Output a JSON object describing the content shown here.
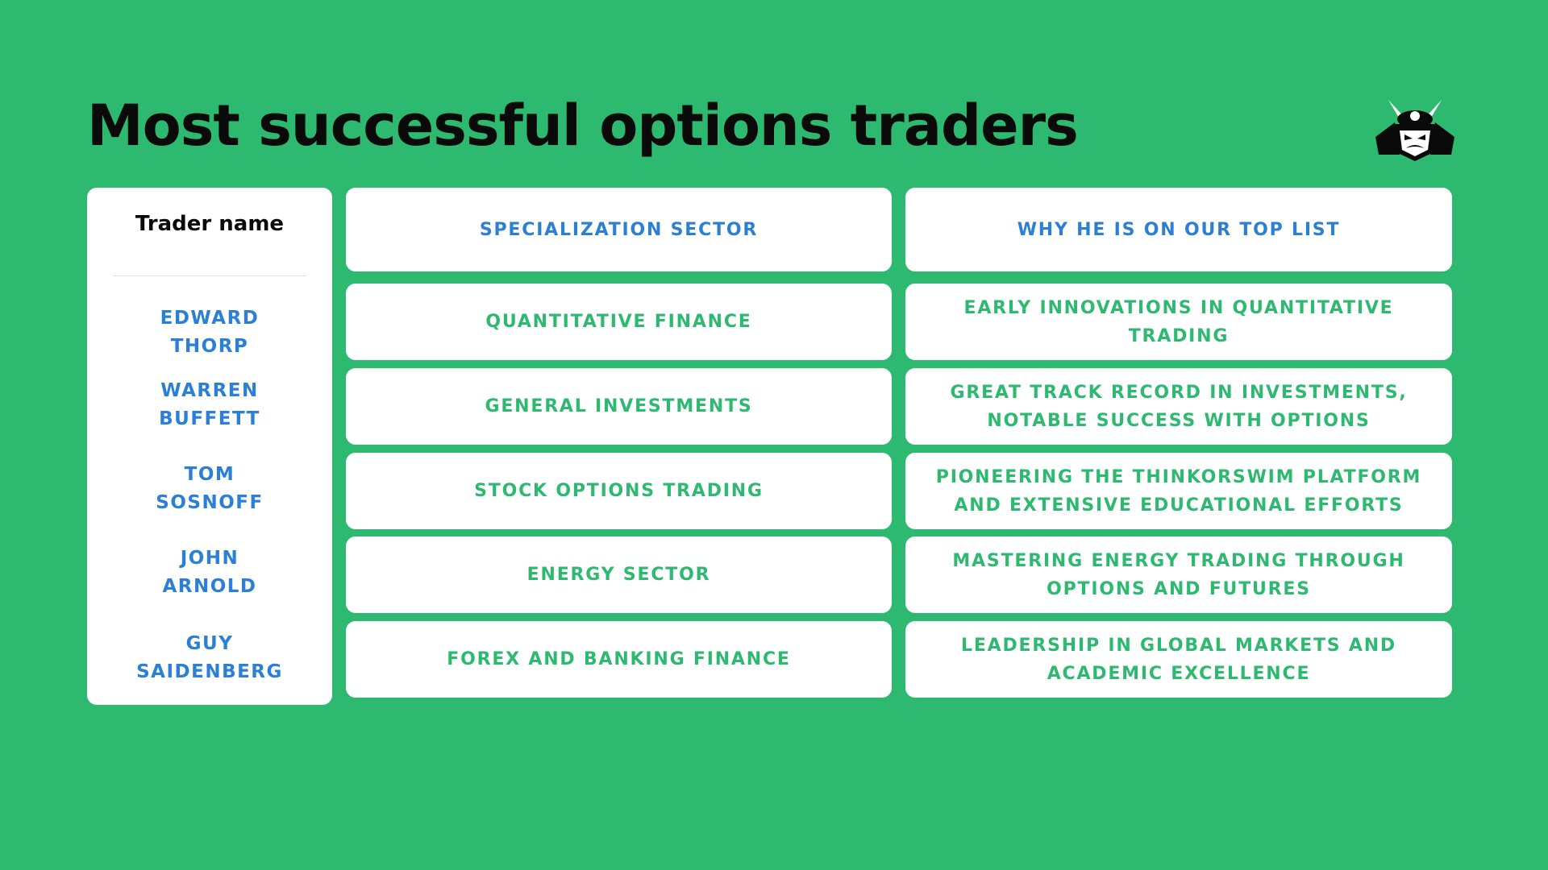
{
  "title": "Most successful options traders",
  "logo_icon": "samurai-helmet-mask-icon",
  "colors": {
    "background": "#2db96f",
    "card": "#ffffff",
    "accent_blue": "#2b7fd6",
    "accent_green": "#2db96f",
    "text_dark": "#0a0a0a"
  },
  "table": {
    "headers": {
      "trader_name": "Trader name",
      "sector": "SPECIALIZATION SECTOR",
      "reason": "WHY HE IS ON OUR TOP LIST"
    },
    "rows": [
      {
        "name_line1": "EDWARD",
        "name_line2": "THORP",
        "sector": "QUANTITATIVE FINANCE",
        "reason": "EARLY INNOVATIONS IN QUANTITATIVE TRADING"
      },
      {
        "name_line1": "WARREN",
        "name_line2": "BUFFETT",
        "sector": "GENERAL INVESTMENTS",
        "reason": "GREAT TRACK RECORD IN INVESTMENTS, NOTABLE SUCCESS WITH OPTIONS"
      },
      {
        "name_line1": "TOM",
        "name_line2": "SOSNOFF",
        "sector": "STOCK OPTIONS TRADING",
        "reason": "PIONEERING THE THINKORSWIM PLATFORM AND EXTENSIVE EDUCATIONAL EFFORTS"
      },
      {
        "name_line1": "JOHN",
        "name_line2": "ARNOLD",
        "sector": "ENERGY SECTOR",
        "reason": "MASTERING ENERGY TRADING THROUGH OPTIONS AND FUTURES"
      },
      {
        "name_line1": "GUY",
        "name_line2": "SAIDENBERG",
        "sector": "FOREX AND BANKING FINANCE",
        "reason": "LEADERSHIP IN GLOBAL MARKETS AND ACADEMIC EXCELLENCE"
      }
    ]
  }
}
